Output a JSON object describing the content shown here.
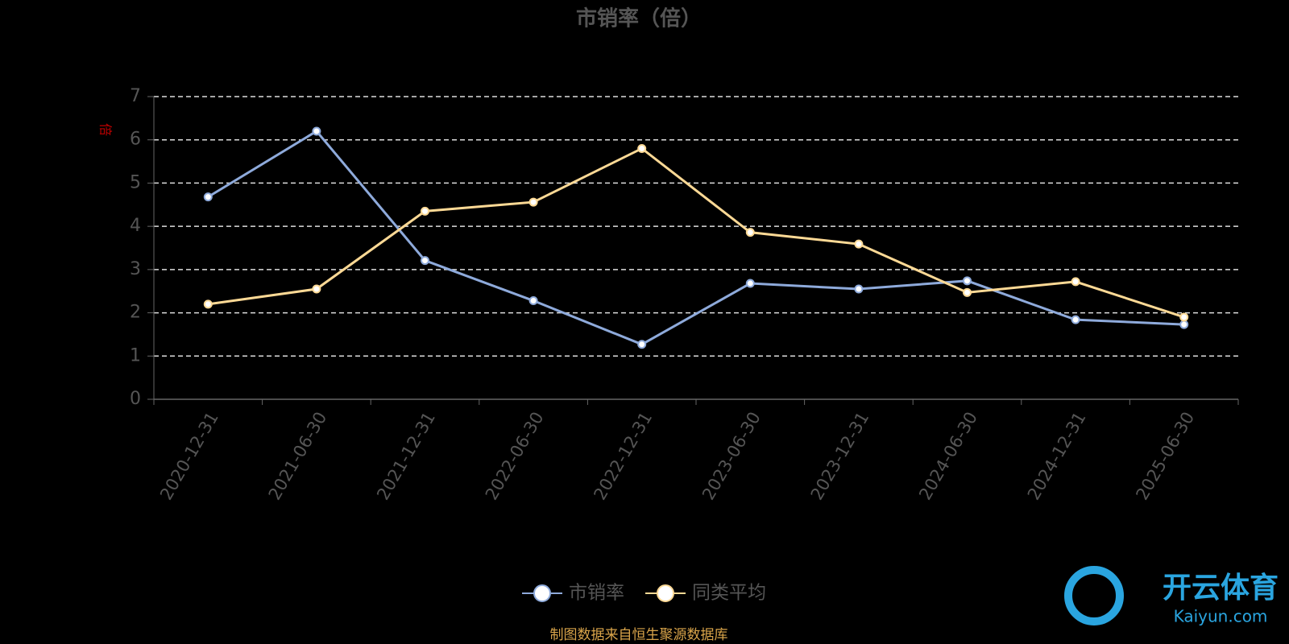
{
  "chart_data": {
    "type": "line",
    "title": "市销率（倍）",
    "y_label": "倍",
    "categories": [
      "2020-12-31",
      "2021-06-30",
      "2021-12-31",
      "2022-06-30",
      "2022-12-31",
      "2023-06-30",
      "2023-12-31",
      "2024-06-30",
      "2024-12-31",
      "2025-06-30"
    ],
    "series": [
      {
        "name": "市销率",
        "color": "#8eaadb",
        "values": [
          4.68,
          6.2,
          3.21,
          2.28,
          1.27,
          2.68,
          2.55,
          2.74,
          1.84,
          1.73
        ]
      },
      {
        "name": "同类平均",
        "color": "#fdd995",
        "values": [
          2.2,
          2.55,
          4.35,
          4.56,
          5.8,
          3.86,
          3.59,
          2.47,
          2.72,
          1.9
        ]
      }
    ],
    "ylim": [
      0,
      7
    ],
    "yticks": [
      0,
      1,
      2,
      3,
      4,
      5,
      6,
      7
    ],
    "grid": true,
    "source": "制图数据来自恒生聚源数据库",
    "watermark": {
      "name": "开云体育",
      "url": "Kaiyun.com"
    }
  }
}
